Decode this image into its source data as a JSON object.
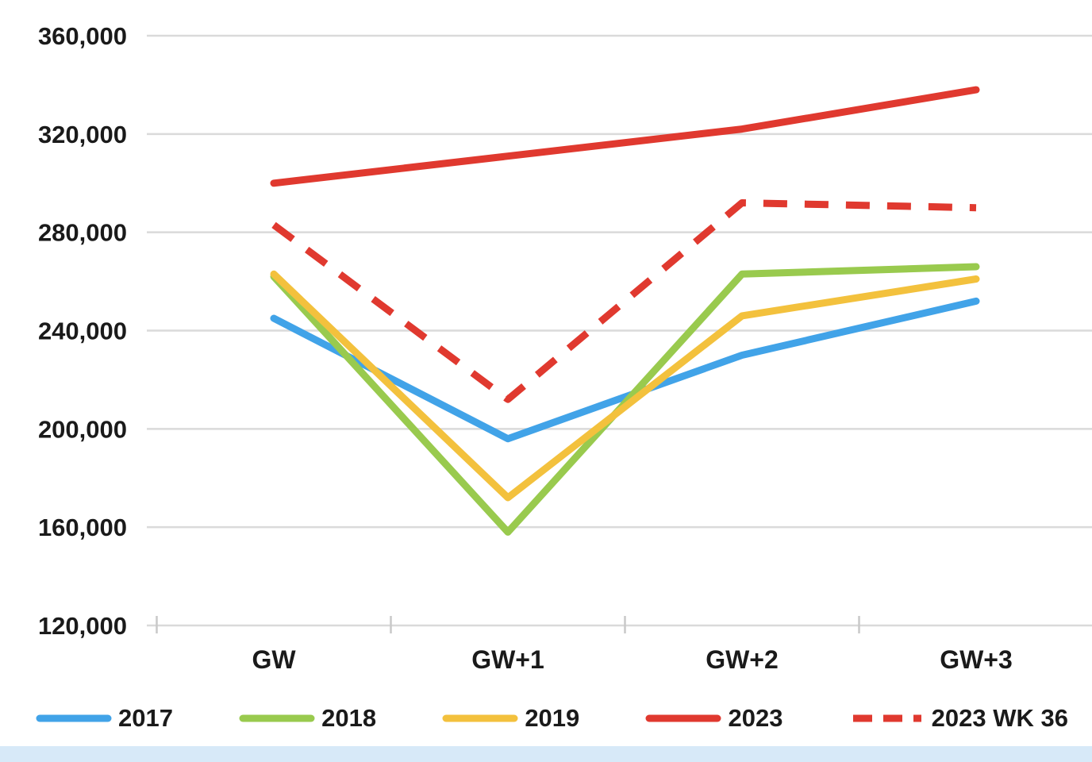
{
  "chart_data": {
    "type": "line",
    "categories": [
      "GW",
      "GW+1",
      "GW+2",
      "GW+3"
    ],
    "series": [
      {
        "name": "2017",
        "color": "#41A3E8",
        "dashed": false,
        "values": [
          245000,
          196000,
          230000,
          252000
        ]
      },
      {
        "name": "2018",
        "color": "#99CA4E",
        "dashed": false,
        "values": [
          262000,
          158000,
          263000,
          266000
        ]
      },
      {
        "name": "2019",
        "color": "#F3C13D",
        "dashed": false,
        "values": [
          263000,
          172000,
          246000,
          261000
        ]
      },
      {
        "name": "2023",
        "color": "#E0392F",
        "dashed": false,
        "values": [
          300000,
          311000,
          322000,
          338000
        ]
      },
      {
        "name": "2023 WK 36",
        "color": "#E0392F",
        "dashed": true,
        "values": [
          283000,
          212000,
          292000,
          290000
        ]
      }
    ],
    "y_tick_labels": [
      "360,000",
      "320,000",
      "280,000",
      "240,000",
      "200,000",
      "160,000",
      "120,000"
    ],
    "y_min": 120000,
    "y_max": 360000,
    "y_step": 40000,
    "title": "",
    "xlabel": "",
    "ylabel": "",
    "grid": true,
    "legend_position": "bottom"
  },
  "colors": {
    "gridline": "#DADADA",
    "tick": "#C9C9C9",
    "axis_text": "#1a1a1a",
    "background": "#FFFFFF",
    "bottom_strip": "#D7E9F8"
  }
}
